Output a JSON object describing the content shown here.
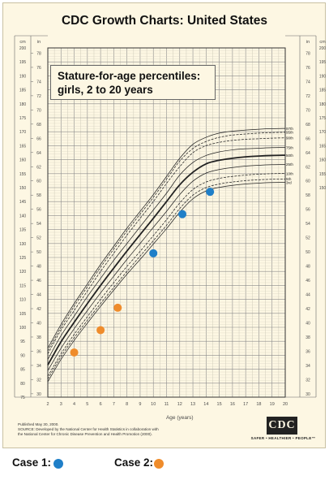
{
  "title": "CDC Growth Charts: United States",
  "subtitle_line1": "Stature-for-age percentiles:",
  "subtitle_line2": "girls, 2 to 20 years",
  "published": "Published May 30, 2000.",
  "source_line1": "SOURCE: Developed by the National Center for Health Statistics in collaboration with",
  "source_line2": "the National Center for Chronic Disease Prevention and Health Promotion (2000).",
  "logo_text": "CDC",
  "tagline": "SAFER • HEALTHIER • PEOPLE™",
  "unit_cm": "cm",
  "unit_in": "in",
  "legend": {
    "case1": "Case 1:",
    "case2": "Case 2:",
    "case1_color": "#1f7fc8",
    "case2_color": "#ef8c2b"
  },
  "chart_data": {
    "type": "line",
    "xlabel": "Age (years)",
    "ylabel_left": "cm",
    "ylabel_right": "in",
    "xlim": [
      2,
      20
    ],
    "ylim": [
      75,
      200
    ],
    "x_ticks": [
      2,
      3,
      4,
      5,
      6,
      7,
      8,
      9,
      10,
      11,
      12,
      13,
      14,
      15,
      16,
      17,
      18,
      19,
      20
    ],
    "cm_ticks": [
      75,
      80,
      85,
      90,
      95,
      100,
      105,
      110,
      115,
      120,
      125,
      130,
      135,
      140,
      145,
      150,
      155,
      160,
      165,
      170,
      175,
      180,
      185,
      190,
      195,
      200
    ],
    "cm_ticks_upper": [
      150,
      155,
      160,
      165,
      170,
      175,
      180,
      185,
      190,
      195,
      200
    ],
    "in_ticks": [
      30,
      32,
      34,
      36,
      38,
      40,
      42,
      44,
      46,
      48,
      50,
      52,
      54,
      56,
      58,
      60,
      62,
      64,
      66,
      68,
      70,
      72,
      74,
      76,
      78
    ],
    "in_ticks_upper": [
      58,
      60,
      62,
      64,
      66,
      68,
      70,
      72,
      74,
      76,
      78
    ],
    "grid": true,
    "ages": [
      2,
      3,
      4,
      5,
      6,
      7,
      8,
      9,
      10,
      11,
      12,
      13,
      14,
      15,
      16,
      17,
      18,
      19,
      20
    ],
    "series": [
      {
        "name": "97th",
        "values": [
          92.5,
          101,
          108.5,
          115.5,
          122.5,
          129,
          135.5,
          141.5,
          147.5,
          154,
          160.5,
          165.5,
          168,
          169.5,
          170.2,
          170.6,
          170.9,
          171.1,
          171.2
        ]
      },
      {
        "name": "95th",
        "values": [
          91.5,
          100,
          107.5,
          114.5,
          121.5,
          128,
          134.5,
          140.5,
          146.5,
          153,
          159.5,
          164,
          166.5,
          168,
          168.8,
          169.2,
          169.5,
          169.7,
          169.8
        ]
      },
      {
        "name": "90th",
        "values": [
          90.5,
          99,
          106,
          113,
          120,
          126.5,
          133,
          139,
          145,
          151.5,
          157.5,
          162.5,
          165,
          166.2,
          166.9,
          167.3,
          167.5,
          167.7,
          167.8
        ]
      },
      {
        "name": "75th",
        "values": [
          88.5,
          97,
          104,
          111,
          117.5,
          124,
          130,
          136,
          142,
          148,
          154.5,
          159,
          161.5,
          162.8,
          163.5,
          163.9,
          164.1,
          164.3,
          164.4
        ]
      },
      {
        "name": "50th",
        "values": [
          86.5,
          94.8,
          101.8,
          108.5,
          115,
          121.2,
          127.3,
          133.2,
          139,
          145,
          151,
          155.5,
          158.5,
          159.8,
          160.5,
          161,
          161.3,
          161.5,
          161.6
        ]
      },
      {
        "name": "25th",
        "values": [
          84.5,
          92.5,
          99.5,
          106,
          112.3,
          118.3,
          124.3,
          130,
          135.8,
          141.5,
          147.5,
          152.3,
          155.2,
          156.5,
          157.2,
          157.7,
          158,
          158.2,
          158.3
        ]
      },
      {
        "name": "10th",
        "values": [
          82.5,
          90.5,
          97.5,
          103.8,
          110,
          116,
          121.8,
          127.2,
          132.8,
          138.5,
          144.5,
          149.3,
          152,
          153.3,
          154,
          154.5,
          154.8,
          155,
          155.1
        ]
      },
      {
        "name": "5th",
        "values": [
          81.5,
          89.5,
          96.3,
          102.5,
          108.5,
          114.3,
          120,
          125.5,
          131,
          136.5,
          142.5,
          147.3,
          150,
          151.3,
          152,
          152.5,
          152.8,
          153,
          153.1
        ]
      },
      {
        "name": "3rd",
        "values": [
          80.5,
          88.5,
          95.3,
          101.5,
          107.5,
          113.3,
          119,
          124.3,
          129.8,
          135.3,
          141.2,
          146,
          148.8,
          150.1,
          150.8,
          151.3,
          151.6,
          151.8,
          151.9
        ]
      }
    ],
    "case1_points": [
      [
        10,
        126.5
      ],
      [
        12.2,
        140.5
      ],
      [
        14.3,
        148.5
      ]
    ],
    "case2_points": [
      [
        4,
        91
      ],
      [
        6,
        99
      ],
      [
        7.3,
        107
      ]
    ]
  }
}
